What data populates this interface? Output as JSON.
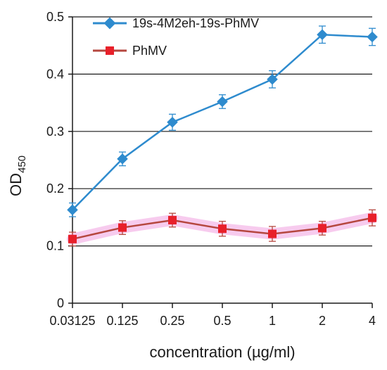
{
  "chart_data": {
    "type": "line",
    "xlabel": "concentration (µg/ml)",
    "ylabel_main": "OD",
    "ylabel_sub": "450",
    "categories": [
      "0.03125",
      "0.125",
      "0.25",
      "0.5",
      "1",
      "2",
      "4"
    ],
    "ylim": [
      0,
      0.5
    ],
    "yticks": [
      "0",
      "0.1",
      "0.2",
      "0.3",
      "0.4",
      "0.5"
    ],
    "ytick_values": [
      0,
      0.1,
      0.2,
      0.3,
      0.4,
      0.5
    ],
    "grid": "horizontal",
    "legend_position": "top-left",
    "series": [
      {
        "name": "19s-4M2eh-19s-PhMV",
        "color": "#2E8BCE",
        "marker": "diamond",
        "values": [
          0.163,
          0.252,
          0.316,
          0.352,
          0.391,
          0.469,
          0.465
        ],
        "errors": [
          0.012,
          0.012,
          0.014,
          0.012,
          0.015,
          0.015,
          0.015
        ]
      },
      {
        "name": "PhMV",
        "color": "#E8202A",
        "line_color": "#B5473F",
        "marker": "square",
        "values": [
          0.112,
          0.132,
          0.145,
          0.13,
          0.121,
          0.131,
          0.149
        ],
        "errors": [
          0.012,
          0.012,
          0.012,
          0.013,
          0.013,
          0.012,
          0.014
        ]
      }
    ]
  }
}
